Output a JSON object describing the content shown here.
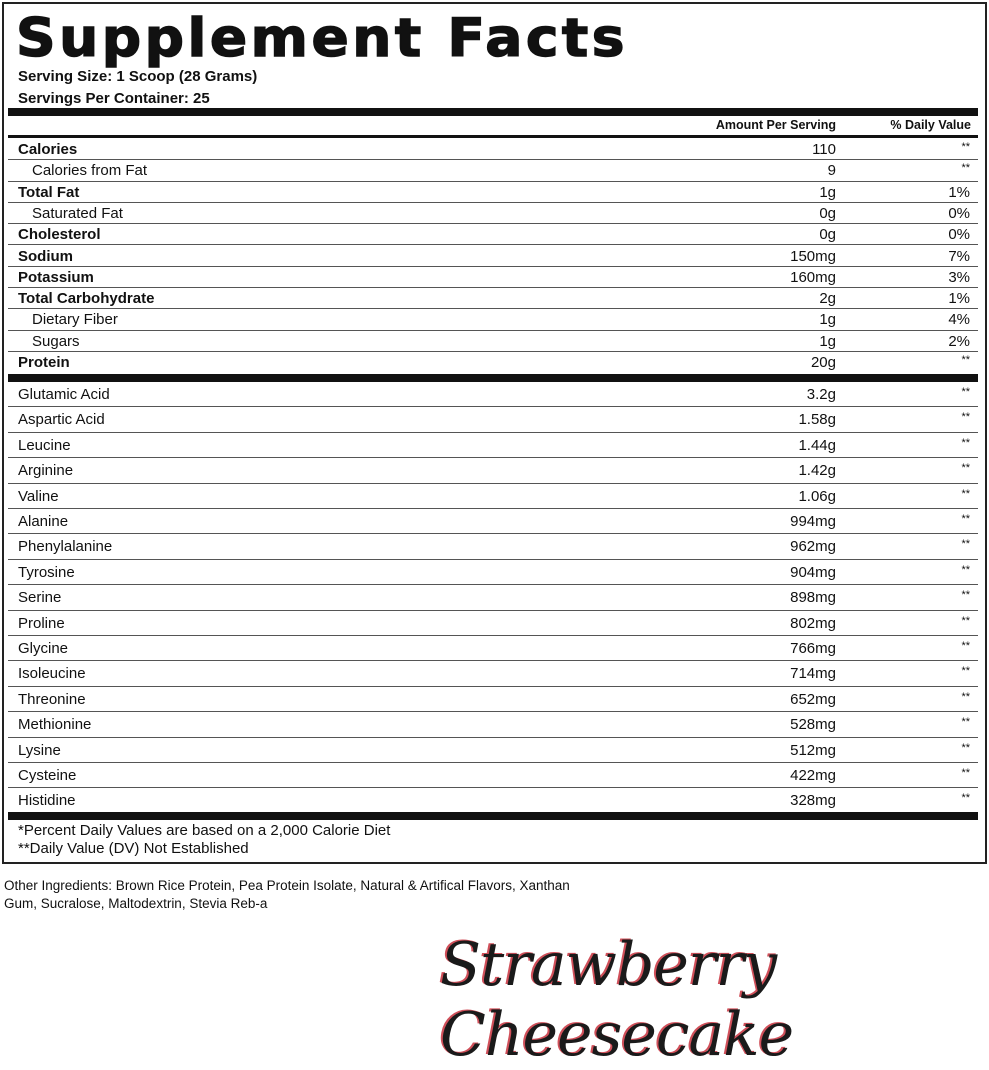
{
  "title": "Supplement Facts",
  "serving_size": "Serving Size: 1 Scoop (28 Grams)",
  "servings_per_container": "Servings Per Container: 25",
  "headers": {
    "amount": "Amount Per Serving",
    "dv": "% Daily Value"
  },
  "nutrients": [
    {
      "name": "Calories",
      "amount": "110",
      "dv": "**",
      "bold": true,
      "indent": false
    },
    {
      "name": "Calories from Fat",
      "amount": "9",
      "dv": "**",
      "bold": false,
      "indent": true
    },
    {
      "name": "Total Fat",
      "amount": "1g",
      "dv": "1%",
      "bold": true,
      "indent": false
    },
    {
      "name": "Saturated Fat",
      "amount": "0g",
      "dv": "0%",
      "bold": false,
      "indent": true
    },
    {
      "name": "Cholesterol",
      "amount": "0g",
      "dv": "0%",
      "bold": true,
      "indent": false
    },
    {
      "name": "Sodium",
      "amount": "150mg",
      "dv": "7%",
      "bold": true,
      "indent": false
    },
    {
      "name": "Potassium",
      "amount": "160mg",
      "dv": "3%",
      "bold": true,
      "indent": false
    },
    {
      "name": "Total Carbohydrate",
      "amount": "2g",
      "dv": "1%",
      "bold": true,
      "indent": false
    },
    {
      "name": "Dietary Fiber",
      "amount": "1g",
      "dv": "4%",
      "bold": false,
      "indent": true
    },
    {
      "name": "Sugars",
      "amount": "1g",
      "dv": "2%",
      "bold": false,
      "indent": true
    },
    {
      "name": "Protein",
      "amount": "20g",
      "dv": "**",
      "bold": true,
      "indent": false
    }
  ],
  "amino_acids": [
    {
      "name": "Glutamic Acid",
      "amount": "3.2g",
      "dv": "**"
    },
    {
      "name": "Aspartic Acid",
      "amount": "1.58g",
      "dv": "**"
    },
    {
      "name": "Leucine",
      "amount": "1.44g",
      "dv": "**"
    },
    {
      "name": "Arginine",
      "amount": "1.42g",
      "dv": "**"
    },
    {
      "name": "Valine",
      "amount": "1.06g",
      "dv": "**"
    },
    {
      "name": "Alanine",
      "amount": "994mg",
      "dv": "**"
    },
    {
      "name": "Phenylalanine",
      "amount": "962mg",
      "dv": "**"
    },
    {
      "name": "Tyrosine",
      "amount": "904mg",
      "dv": "**"
    },
    {
      "name": "Serine",
      "amount": "898mg",
      "dv": "**"
    },
    {
      "name": "Proline",
      "amount": "802mg",
      "dv": "**"
    },
    {
      "name": "Glycine",
      "amount": "766mg",
      "dv": "**"
    },
    {
      "name": "Isoleucine",
      "amount": "714mg",
      "dv": "**"
    },
    {
      "name": "Threonine",
      "amount": "652mg",
      "dv": "**"
    },
    {
      "name": "Methionine",
      "amount": "528mg",
      "dv": "**"
    },
    {
      "name": "Lysine",
      "amount": "512mg",
      "dv": "**"
    },
    {
      "name": "Cysteine",
      "amount": "422mg",
      "dv": "**"
    },
    {
      "name": "Histidine",
      "amount": "328mg",
      "dv": "**"
    }
  ],
  "footnotes": [
    "*Percent Daily Values are based on a 2,000 Calorie Diet",
    "**Daily Value (DV) Not Established"
  ],
  "other_ingredients": "Other Ingredients: Brown Rice Protein, Pea Protein Isolate, Natural & Artifical Flavors, Xanthan Gum, Sucralose, Maltodextrin, Stevia Reb-a",
  "flavor": "Strawberry Cheesecake",
  "colors": {
    "flavor_outline": "#d0505a",
    "text": "#111111"
  }
}
